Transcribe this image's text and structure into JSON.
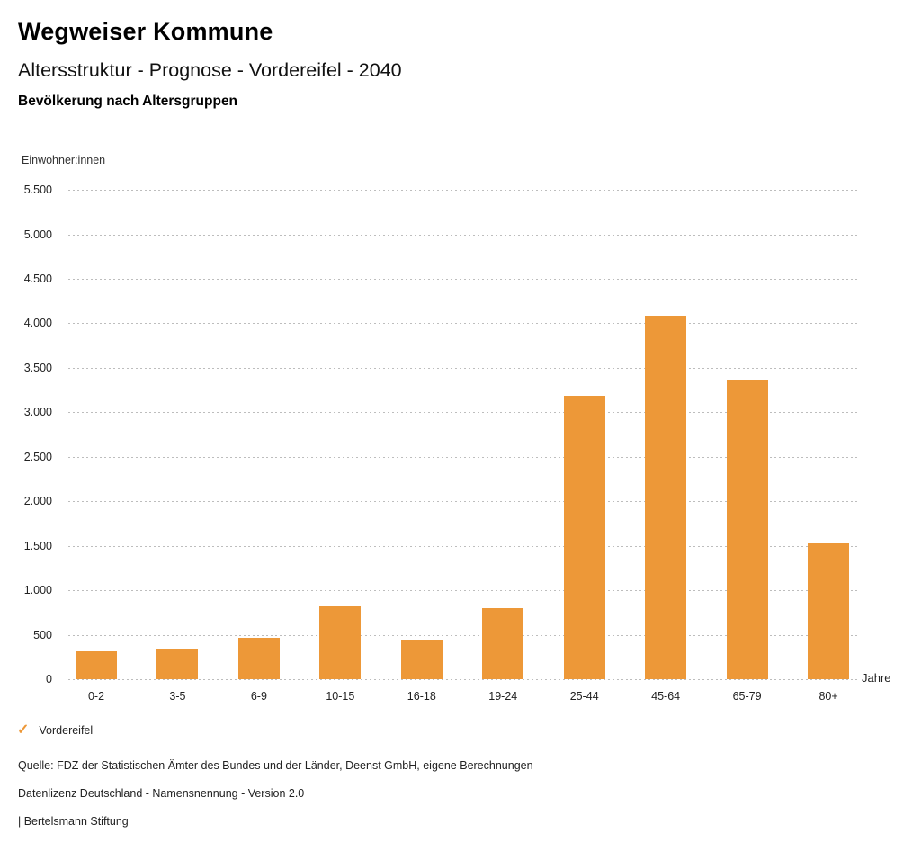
{
  "header": {
    "title": "Wegweiser Kommune",
    "subtitle": "Altersstruktur - Prognose - Vordereifel - 2040",
    "chart_heading": "Bevölkerung nach Altersgruppen"
  },
  "chart_data": {
    "type": "bar",
    "title": "Bevölkerung nach Altersgruppen",
    "unit_label": "Einwohner:innen",
    "xlabel": "Jahre",
    "categories": [
      "0-2",
      "3-5",
      "6-9",
      "10-15",
      "16-18",
      "19-24",
      "25-44",
      "45-64",
      "65-79",
      "80+"
    ],
    "values": [
      310,
      330,
      470,
      820,
      440,
      800,
      3180,
      4080,
      3370,
      1530
    ],
    "series_name": "Vordereifel",
    "ylim": [
      0,
      5500
    ],
    "ytick_step": 500,
    "ytick_labels": [
      "0",
      "500",
      "1.000",
      "1.500",
      "2.000",
      "2.500",
      "3.000",
      "3.500",
      "4.000",
      "4.500",
      "5.000",
      "5.500"
    ],
    "grid": "horizontal-dotted",
    "legend_position": "bottom-left"
  },
  "legend": {
    "check_icon": "✓",
    "label": "Vordereifel"
  },
  "footer": {
    "source": "Quelle: FDZ der Statistischen Ämter des Bundes und der Länder, Deenst GmbH, eigene Berechnungen",
    "license": "Datenlizenz Deutschland - Namensnennung - Version 2.0",
    "attribution": "| Bertelsmann Stiftung"
  },
  "colors": {
    "bar": "#ED9838",
    "accent": "#ED9838",
    "grid": "#BDBDBD",
    "text": "#1A1A1A"
  }
}
